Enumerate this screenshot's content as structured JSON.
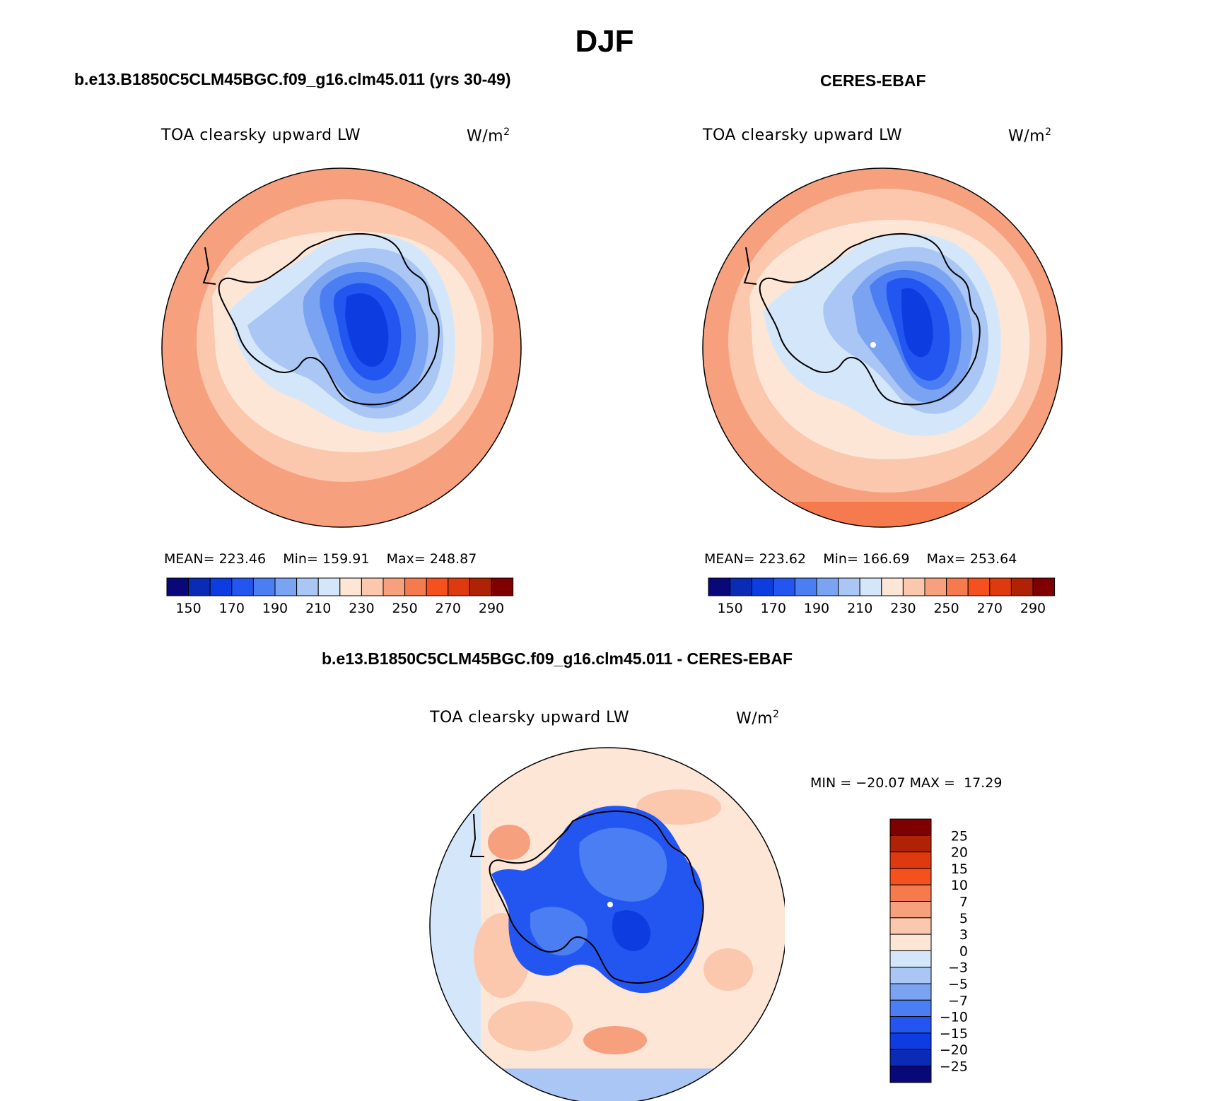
{
  "main_title": "DJF",
  "colors": {
    "abs_palette": [
      "#08087a",
      "#0a2bb5",
      "#0d3de0",
      "#2356f0",
      "#4a7ef2",
      "#7aa3f2",
      "#a9c6f5",
      "#d4e7fa",
      "#fde6d6",
      "#fbc7ad",
      "#f7a07e",
      "#f57b4e",
      "#f4511e",
      "#df3910",
      "#b02205",
      "#7f0000"
    ],
    "diff_palette": [
      "#08087a",
      "#0a2bb5",
      "#0d3de0",
      "#2356f0",
      "#4a7ef2",
      "#7aa3f2",
      "#a9c6f5",
      "#d4e7fa",
      "#fde6d6",
      "#fbc7ad",
      "#f7a07e",
      "#f57b4e",
      "#f4511e",
      "#df3910",
      "#b02205",
      "#7f0000"
    ]
  },
  "chart_data": [
    {
      "type": "heatmap",
      "panel": "model",
      "title": "b.e13.B1850C5CLM45BGC.f09_g16.clm45.011 (yrs 30-49)",
      "variable": "TOA clearsky upward LW",
      "units": "W/m",
      "units_sup": "2",
      "projection": "south polar stereographic",
      "stats_text": {
        "mean_label": "MEAN=",
        "mean": "223.46",
        "min_label": "Min=",
        "min": "159.91",
        "max_label": "Max=",
        "max": "248.87"
      },
      "colorbar": {
        "orientation": "horizontal",
        "tick_labels": [
          "150",
          "170",
          "190",
          "210",
          "230",
          "250",
          "270",
          "290"
        ]
      }
    },
    {
      "type": "heatmap",
      "panel": "obs",
      "title": "CERES-EBAF",
      "variable": "TOA clearsky upward LW",
      "units": "W/m",
      "units_sup": "2",
      "projection": "south polar stereographic",
      "stats_text": {
        "mean_label": "MEAN=",
        "mean": "223.62",
        "min_label": "Min=",
        "min": "166.69",
        "max_label": "Max=",
        "max": "253.64"
      },
      "colorbar": {
        "orientation": "horizontal",
        "tick_labels": [
          "150",
          "170",
          "190",
          "210",
          "230",
          "250",
          "270",
          "290"
        ]
      }
    },
    {
      "type": "heatmap",
      "panel": "difference",
      "title": "b.e13.B1850C5CLM45BGC.f09_g16.clm45.011 - CERES-EBAF",
      "variable": "TOA clearsky upward LW",
      "units": "W/m",
      "units_sup": "2",
      "projection": "south polar stereographic",
      "stats_text": {
        "min_label": "MIN =",
        "min": "−20.07",
        "max_label": "MAX =",
        "max": "17.29"
      },
      "colorbar": {
        "orientation": "vertical",
        "tick_labels": [
          "25",
          "20",
          "15",
          "10",
          "7",
          "5",
          "3",
          "0",
          "−3",
          "−5",
          "−7",
          "−10",
          "−15",
          "−20",
          "−25"
        ]
      }
    }
  ]
}
